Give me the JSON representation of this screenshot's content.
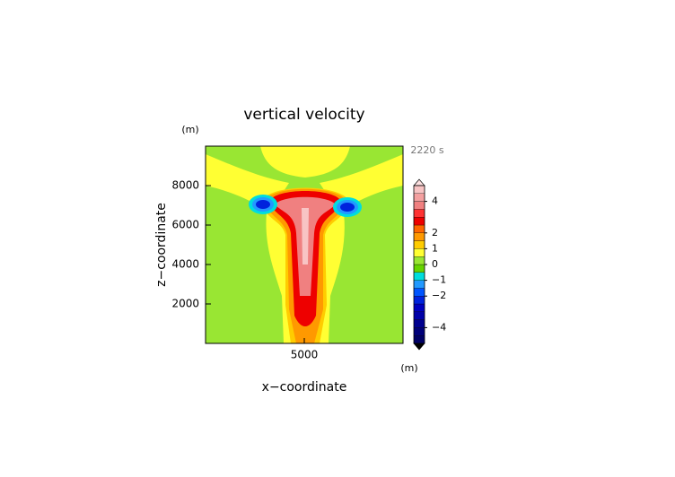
{
  "chart_data": {
    "type": "contour",
    "title": "vertical velocity",
    "x_label": "x−coordinate",
    "y_label": "z−coordinate",
    "x_unit": "(m)",
    "y_unit": "(m)",
    "annotation": "2220 s",
    "xlim": [
      0,
      10000
    ],
    "ylim": [
      0,
      10000
    ],
    "xticks": [
      5000
    ],
    "yticks": [
      2000,
      4000,
      6000,
      8000
    ],
    "colorbar": {
      "lim": [
        -5,
        5
      ],
      "levels": [
        -5,
        -4.5,
        -4,
        -3.5,
        -3,
        -2.5,
        -2,
        -1.5,
        -1,
        -0.5,
        0,
        0.5,
        1,
        1.5,
        2,
        2.5,
        3,
        3.5,
        4,
        4.5,
        5
      ],
      "colors": [
        "#000066",
        "#00007a",
        "#000090",
        "#0000a8",
        "#0000c0",
        "#0022dd",
        "#0055ff",
        "#2299ff",
        "#00dddd",
        "#66d400",
        "#99e633",
        "#ffff33",
        "#ffcc00",
        "#ff9900",
        "#ff6600",
        "#ee0000",
        "#ff3333",
        "#f08080",
        "#f4a0a0",
        "#f8c4c4"
      ],
      "ticks": [
        {
          "value": -4,
          "label": "−4"
        },
        {
          "value": -2,
          "label": "−2"
        },
        {
          "value": -1,
          "label": "−1"
        },
        0,
        1,
        2,
        4
      ]
    }
  }
}
